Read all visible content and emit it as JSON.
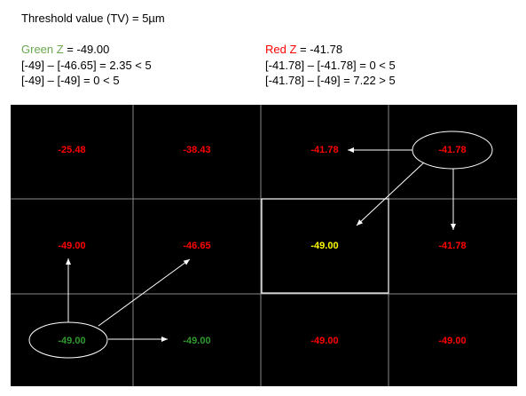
{
  "header": {
    "title": "Threshold value (TV) = 5µm"
  },
  "left": {
    "label": "Green Z",
    "label_color": "#6aa84f",
    "value_text": " = -49.00",
    "lines": [
      "[-49] – [-46.65] = 2.35 < 5",
      "[-49] – [-49] = 0 < 5"
    ]
  },
  "right": {
    "label": "Red Z",
    "label_color": "#ff0000",
    "value_text": " = -41.78",
    "lines": [
      "[-41.78] – [-41.78] = 0 < 5",
      "[-41.78] – [-49] = 7.22 > 5"
    ]
  },
  "grid": {
    "rows": [
      [
        {
          "text": "-25.48",
          "color": "#ff0000"
        },
        {
          "text": "-38.43",
          "color": "#ff0000"
        },
        {
          "text": "-41.78",
          "color": "#ff0000"
        },
        {
          "text": "-41.78",
          "color": "#ff0000"
        }
      ],
      [
        {
          "text": "-49.00",
          "color": "#ff0000"
        },
        {
          "text": "-46.65",
          "color": "#ff0000"
        },
        {
          "text": "-49.00",
          "color": "#ffff00"
        },
        {
          "text": "-41.78",
          "color": "#ff0000"
        }
      ],
      [
        {
          "text": "-49.00",
          "color": "#2e9a2e"
        },
        {
          "text": "-49.00",
          "color": "#2e9a2e"
        },
        {
          "text": "-49.00",
          "color": "#ff0000"
        },
        {
          "text": "-49.00",
          "color": "#ff0000"
        }
      ]
    ]
  }
}
